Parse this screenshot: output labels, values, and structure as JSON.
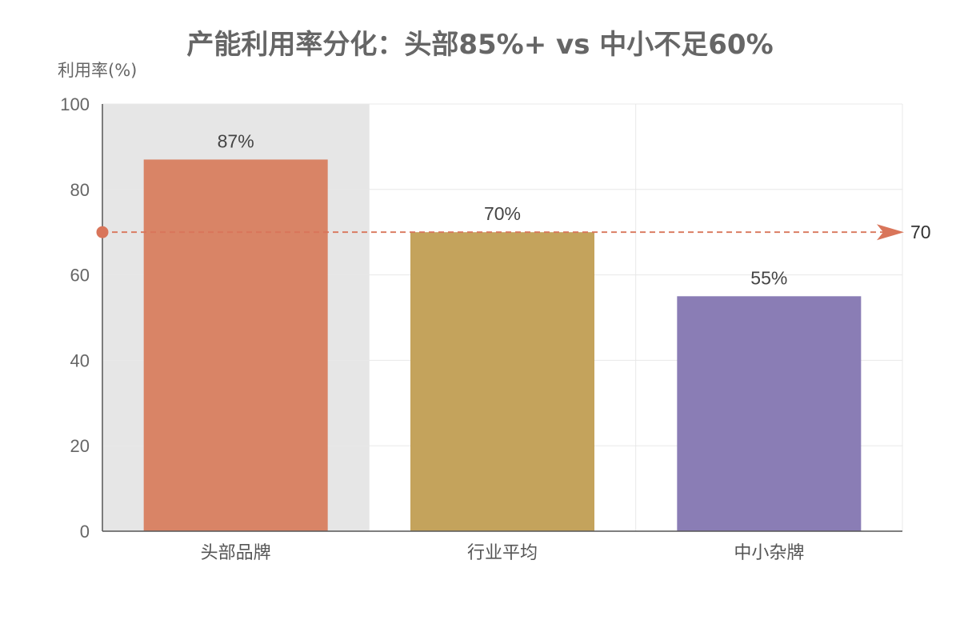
{
  "chart_data": {
    "type": "bar",
    "title": "产能利用率分化：头部85%+ vs 中小不足60%",
    "ylabel": "利用率(%)",
    "xlabel": "",
    "ylim": [
      0,
      100
    ],
    "yticks": [
      "0",
      "20",
      "40",
      "60",
      "80",
      "100"
    ],
    "categories": [
      "头部品牌",
      "行业平均",
      "中小杂牌"
    ],
    "values": [
      87,
      70,
      55
    ],
    "data_labels": [
      "87%",
      "70%",
      "55%"
    ],
    "colors": [
      "#d98466",
      "#c4a35c",
      "#8a7db5"
    ],
    "highlighted_category": "头部品牌",
    "reference_line": {
      "value": 70,
      "label": "70",
      "color": "#d9755a",
      "style": "dashed"
    },
    "grid": true
  }
}
